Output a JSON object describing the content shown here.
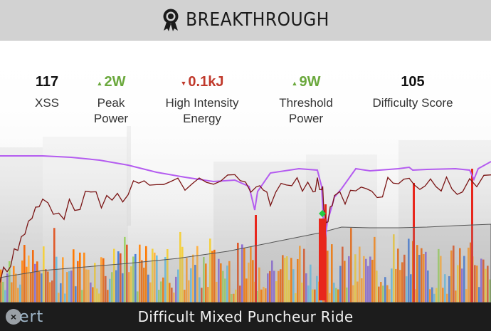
{
  "header": {
    "title": "BREAKTHROUGH",
    "icon": "award-ribbon-icon"
  },
  "metrics": [
    {
      "value": "117",
      "trend": "none",
      "label_line1": "XSS",
      "label_line2": ""
    },
    {
      "value": "2W",
      "trend": "up",
      "label_line1": "Peak",
      "label_line2": "Power"
    },
    {
      "value": "0.1kJ",
      "trend": "down",
      "label_line1": "High Intensity",
      "label_line2": "Energy"
    },
    {
      "value": "9W",
      "trend": "up",
      "label_line1": "Threshold",
      "label_line2": "Power"
    },
    {
      "value": "105",
      "trend": "none",
      "label_line1": "Difficulty Score",
      "label_line2": ""
    }
  ],
  "colors": {
    "up": "#6aa83c",
    "down": "#c0392b",
    "mpa_line": "#b45cf0",
    "power_line": "#7a1414",
    "breakthrough_marker": "#22cc44",
    "footer_bg": "#1c1c1c",
    "header_bg": "#d2d2d2"
  },
  "footer": {
    "title": "Difficult Mixed Puncheur Ride",
    "logo": "xert"
  }
}
